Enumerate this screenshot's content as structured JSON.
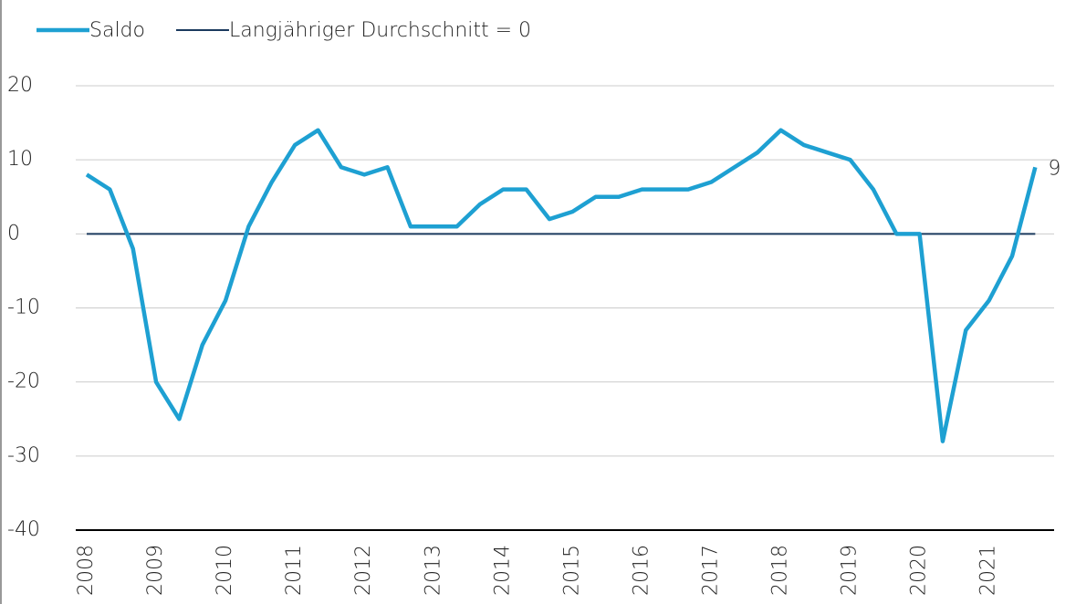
{
  "chart_data": {
    "type": "line",
    "categories": [
      "2008",
      null,
      null,
      "2009",
      null,
      null,
      "2010",
      null,
      null,
      "2011",
      null,
      null,
      "2012",
      null,
      null,
      "2013",
      null,
      null,
      "2014",
      null,
      null,
      "2015",
      null,
      null,
      "2016",
      null,
      null,
      "2017",
      null,
      null,
      "2018",
      null,
      null,
      "2019",
      null,
      null,
      "2020",
      null,
      null,
      "2021",
      null,
      null
    ],
    "series": [
      {
        "name": "Saldo",
        "color": "#1ea0d2",
        "values": [
          8,
          6,
          -2,
          -20,
          -25,
          -15,
          -9,
          1,
          7,
          12,
          14,
          9,
          8,
          9,
          1,
          1,
          1,
          4,
          6,
          6,
          2,
          3,
          5,
          5,
          6,
          6,
          6,
          7,
          9,
          11,
          14,
          12,
          11,
          10,
          6,
          0,
          0,
          -28,
          -13,
          -9,
          -3,
          9
        ]
      },
      {
        "name": "Langjähriger Durchschnitt = 0",
        "color": "#1b3a5e",
        "values": [
          0,
          0,
          0,
          0,
          0,
          0,
          0,
          0,
          0,
          0,
          0,
          0,
          0,
          0,
          0,
          0,
          0,
          0,
          0,
          0,
          0,
          0,
          0,
          0,
          0,
          0,
          0,
          0,
          0,
          0,
          0,
          0,
          0,
          0,
          0,
          0,
          0,
          0,
          0,
          0,
          0,
          0
        ]
      }
    ],
    "ylim": [
      -40,
      20
    ],
    "yticks": [
      -40,
      -30,
      -20,
      -10,
      0,
      10,
      20
    ],
    "grid": true,
    "legend": "top"
  }
}
